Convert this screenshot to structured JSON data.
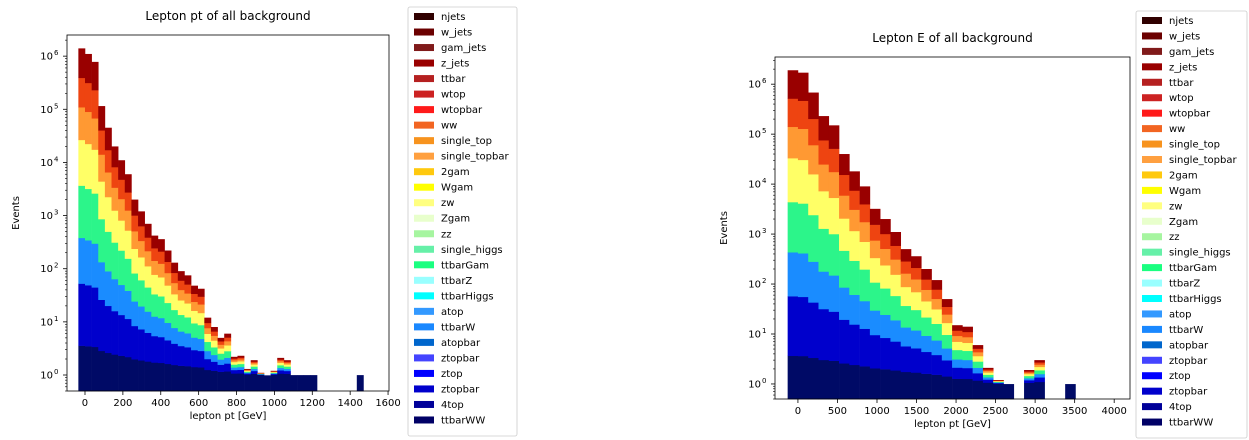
{
  "chart_data": [
    {
      "type": "bar",
      "stacked": true,
      "title": "Lepton pt of all background",
      "xlabel": "lepton pt [GeV]",
      "ylabel": "Events",
      "yscale": "log",
      "xlim": [
        -95,
        1605
      ],
      "ylim": [
        0.5,
        2500000
      ],
      "bin_width": 35,
      "xticks": [
        0,
        200,
        400,
        600,
        800,
        1000,
        1200,
        1400,
        1600
      ],
      "xticklabels": [
        "0",
        "200",
        "400",
        "600",
        "800",
        "1000",
        "1200",
        "1400",
        "1600"
      ],
      "yticks": [
        1,
        10,
        100,
        1000,
        10000,
        100000,
        1000000
      ],
      "yticklabels": [
        "10",
        "10",
        "10",
        "10",
        "10",
        "10",
        "10"
      ],
      "yticksup": [
        "0",
        "1",
        "2",
        "3",
        "4",
        "5",
        "6"
      ],
      "totals": [
        [
          -17.5,
          1400000
        ],
        [
          17.5,
          1100000
        ],
        [
          52.5,
          780000
        ],
        [
          87.5,
          115000
        ],
        [
          122.5,
          45000
        ],
        [
          157.5,
          20000
        ],
        [
          192.5,
          11000
        ],
        [
          227.5,
          6000
        ],
        [
          262.5,
          2000
        ],
        [
          297.5,
          1200
        ],
        [
          332.5,
          700
        ],
        [
          367.5,
          420
        ],
        [
          402.5,
          360
        ],
        [
          437.5,
          220
        ],
        [
          472.5,
          130
        ],
        [
          507.5,
          90
        ],
        [
          542.5,
          75
        ],
        [
          577.5,
          48
        ],
        [
          612.5,
          42
        ],
        [
          647.5,
          12
        ],
        [
          682.5,
          8
        ],
        [
          717.5,
          5
        ],
        [
          752.5,
          6
        ],
        [
          787.5,
          2.2
        ],
        [
          822.5,
          2.3
        ],
        [
          857.5,
          1.3
        ],
        [
          892.5,
          1.9
        ],
        [
          927.5,
          1.1
        ],
        [
          962.5,
          0.85
        ],
        [
          997.5,
          1.2
        ],
        [
          1032.5,
          2.1
        ],
        [
          1067.5,
          1.9
        ],
        [
          1102.5,
          0.95
        ],
        [
          1137.5,
          0.95
        ],
        [
          1172.5,
          0.95
        ],
        [
          1207.5,
          0.95
        ],
        [
          1242.5,
          0
        ],
        [
          1277.5,
          0
        ],
        [
          1312.5,
          0
        ],
        [
          1347.5,
          0
        ],
        [
          1382.5,
          0
        ],
        [
          1417.5,
          0
        ],
        [
          1452.5,
          0.95
        ]
      ],
      "band_edges": [
        0.09,
        0.28,
        0.42,
        0.58,
        0.72,
        0.82,
        0.91,
        1.0
      ],
      "band_colors": [
        "#000a66",
        "#0000cc",
        "#1a8cff",
        "#2cf58a",
        "#ffff66",
        "#ff9933",
        "#ee4411",
        "#990000"
      ]
    },
    {
      "type": "bar",
      "stacked": true,
      "title": "Lepton E of all background",
      "xlabel": "lepton pt [GeV]",
      "ylabel": "Events",
      "yscale": "log",
      "xlim": [
        -290,
        4200
      ],
      "ylim": [
        0.5,
        3500000
      ],
      "bin_width": 130,
      "xticks": [
        0,
        500,
        1000,
        1500,
        2000,
        2500,
        3000,
        3500,
        4000
      ],
      "xticklabels": [
        "0",
        "500",
        "1000",
        "1500",
        "2000",
        "2500",
        "3000",
        "3500",
        "4000"
      ],
      "yticks": [
        1,
        10,
        100,
        1000,
        10000,
        100000,
        1000000
      ],
      "yticklabels": [
        "10",
        "10",
        "10",
        "10",
        "10",
        "10",
        "10"
      ],
      "yticksup": [
        "0",
        "1",
        "2",
        "3",
        "4",
        "5",
        "6"
      ],
      "totals": [
        [
          -65,
          1900000
        ],
        [
          65,
          1700000
        ],
        [
          195,
          680000
        ],
        [
          325,
          230000
        ],
        [
          455,
          150000
        ],
        [
          585,
          40000
        ],
        [
          715,
          18000
        ],
        [
          845,
          9000
        ],
        [
          975,
          3200
        ],
        [
          1105,
          2000
        ],
        [
          1235,
          1100
        ],
        [
          1365,
          500
        ],
        [
          1495,
          360
        ],
        [
          1625,
          200
        ],
        [
          1755,
          120
        ],
        [
          1885,
          50
        ],
        [
          2015,
          15
        ],
        [
          2145,
          14
        ],
        [
          2275,
          6
        ],
        [
          2405,
          2.1
        ],
        [
          2535,
          1.2
        ],
        [
          2665,
          0.95
        ],
        [
          2795,
          0
        ],
        [
          2925,
          1.9
        ],
        [
          3055,
          3
        ],
        [
          3185,
          0
        ],
        [
          3315,
          0
        ],
        [
          3445,
          0.95
        ]
      ],
      "band_edges": [
        0.09,
        0.28,
        0.42,
        0.58,
        0.72,
        0.82,
        0.91,
        1.0
      ],
      "band_colors": [
        "#000a66",
        "#0000cc",
        "#1a8cff",
        "#2cf58a",
        "#ffff66",
        "#ff9933",
        "#ee4411",
        "#990000"
      ]
    }
  ],
  "legend": [
    {
      "label": "njets",
      "color": "#300000"
    },
    {
      "label": "w_jets",
      "color": "#6b0000"
    },
    {
      "label": "gam_jets",
      "color": "#801a1a"
    },
    {
      "label": "z_jets",
      "color": "#990000"
    },
    {
      "label": "ttbar",
      "color": "#b52020"
    },
    {
      "label": "wtop",
      "color": "#cc2222"
    },
    {
      "label": "wtopbar",
      "color": "#ff1a1a"
    },
    {
      "label": "ww",
      "color": "#f26522"
    },
    {
      "label": "single_top",
      "color": "#f7931e"
    },
    {
      "label": "single_topbar",
      "color": "#ffa040"
    },
    {
      "label": "2gam",
      "color": "#ffc90e"
    },
    {
      "label": "Wgam",
      "color": "#ffff00"
    },
    {
      "label": "zw",
      "color": "#ffff80"
    },
    {
      "label": "Zgam",
      "color": "#e8ffcc"
    },
    {
      "label": "zz",
      "color": "#a6f5a0"
    },
    {
      "label": "single_higgs",
      "color": "#66f0a8"
    },
    {
      "label": "ttbarGam",
      "color": "#1aff80"
    },
    {
      "label": "ttbarZ",
      "color": "#99ffff"
    },
    {
      "label": "ttbarHiggs",
      "color": "#00ffff"
    },
    {
      "label": "atop",
      "color": "#3399ff"
    },
    {
      "label": "ttbarW",
      "color": "#1a88ff"
    },
    {
      "label": "atopbar",
      "color": "#0066cc"
    },
    {
      "label": "ztopbar",
      "color": "#4444ff"
    },
    {
      "label": "ztop",
      "color": "#0000ff"
    },
    {
      "label": "ztopbar",
      "color": "#0000cc"
    },
    {
      "label": "4top",
      "color": "#000099"
    },
    {
      "label": "ttbarWW",
      "color": "#000066"
    }
  ]
}
